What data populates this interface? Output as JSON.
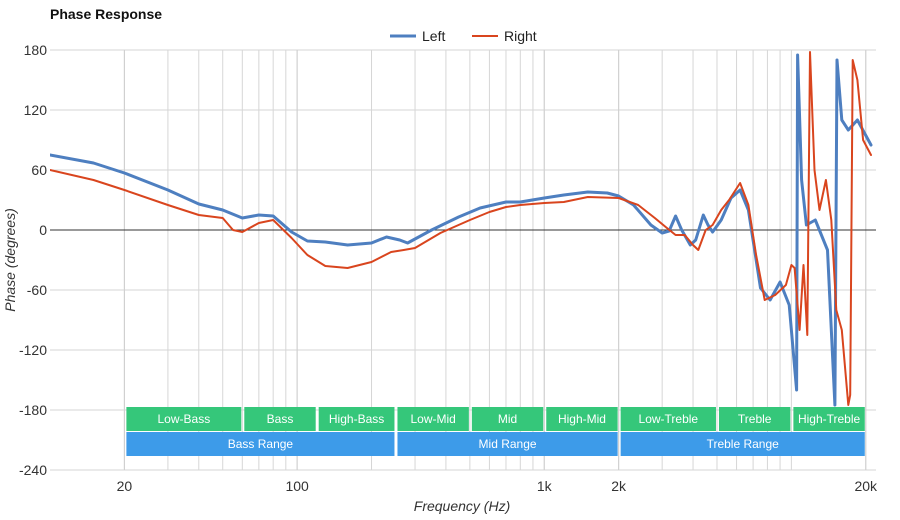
{
  "chart_data": {
    "type": "line",
    "title": "Phase Response",
    "xlabel": "Frequency (Hz)",
    "ylabel": "Phase (degrees)",
    "x_scale": "log",
    "xlim": [
      10,
      22000
    ],
    "ylim": [
      -240,
      180
    ],
    "x_ticks": [
      {
        "value": 20,
        "label": "20"
      },
      {
        "value": 100,
        "label": "100"
      },
      {
        "value": 1000,
        "label": "1k"
      },
      {
        "value": 2000,
        "label": "2k"
      },
      {
        "value": 20000,
        "label": "20k"
      }
    ],
    "y_ticks": [
      180,
      120,
      60,
      0,
      -60,
      -120,
      -180,
      -240
    ],
    "grid": true,
    "legend_position": "top",
    "series": [
      {
        "name": "Left",
        "color": "#4e7fc0",
        "points": [
          [
            10,
            75
          ],
          [
            15,
            67
          ],
          [
            20,
            57
          ],
          [
            30,
            40
          ],
          [
            40,
            26
          ],
          [
            50,
            20
          ],
          [
            60,
            12
          ],
          [
            70,
            15
          ],
          [
            80,
            14
          ],
          [
            95,
            -2
          ],
          [
            110,
            -11
          ],
          [
            130,
            -12
          ],
          [
            160,
            -15
          ],
          [
            200,
            -13
          ],
          [
            230,
            -7
          ],
          [
            260,
            -10
          ],
          [
            280,
            -13
          ],
          [
            350,
            0
          ],
          [
            450,
            13
          ],
          [
            550,
            22
          ],
          [
            700,
            28
          ],
          [
            800,
            28
          ],
          [
            1000,
            32
          ],
          [
            1200,
            35
          ],
          [
            1500,
            38
          ],
          [
            1800,
            37
          ],
          [
            2000,
            34
          ],
          [
            2300,
            25
          ],
          [
            2700,
            5
          ],
          [
            3000,
            -3
          ],
          [
            3200,
            -1
          ],
          [
            3400,
            14
          ],
          [
            3600,
            0
          ],
          [
            3900,
            -15
          ],
          [
            4100,
            -10
          ],
          [
            4400,
            15
          ],
          [
            4600,
            5
          ],
          [
            4800,
            -2
          ],
          [
            5200,
            10
          ],
          [
            5700,
            32
          ],
          [
            6200,
            40
          ],
          [
            6700,
            20
          ],
          [
            7100,
            -20
          ],
          [
            7500,
            -58
          ],
          [
            8200,
            -70
          ],
          [
            9000,
            -52
          ],
          [
            9800,
            -75
          ],
          [
            10500,
            -160
          ],
          [
            10600,
            175
          ],
          [
            11000,
            50
          ],
          [
            11500,
            5
          ],
          [
            12500,
            10
          ],
          [
            14000,
            -20
          ],
          [
            15000,
            -175
          ],
          [
            15300,
            170
          ],
          [
            16000,
            110
          ],
          [
            17000,
            100
          ],
          [
            18500,
            110
          ],
          [
            21000,
            85
          ]
        ]
      },
      {
        "name": "Right",
        "color": "#d9451e",
        "points": [
          [
            10,
            60
          ],
          [
            15,
            50
          ],
          [
            20,
            40
          ],
          [
            30,
            25
          ],
          [
            40,
            15
          ],
          [
            50,
            12
          ],
          [
            55,
            0
          ],
          [
            60,
            -2
          ],
          [
            70,
            7
          ],
          [
            80,
            10
          ],
          [
            95,
            -8
          ],
          [
            110,
            -25
          ],
          [
            130,
            -36
          ],
          [
            160,
            -38
          ],
          [
            200,
            -32
          ],
          [
            240,
            -22
          ],
          [
            270,
            -20
          ],
          [
            300,
            -18
          ],
          [
            380,
            -3
          ],
          [
            500,
            10
          ],
          [
            600,
            18
          ],
          [
            700,
            23
          ],
          [
            800,
            25
          ],
          [
            1000,
            27
          ],
          [
            1200,
            28
          ],
          [
            1500,
            33
          ],
          [
            2000,
            32
          ],
          [
            2400,
            25
          ],
          [
            2800,
            12
          ],
          [
            3100,
            3
          ],
          [
            3400,
            -5
          ],
          [
            3700,
            -5
          ],
          [
            4000,
            -15
          ],
          [
            4200,
            -20
          ],
          [
            4500,
            0
          ],
          [
            4800,
            5
          ],
          [
            5200,
            20
          ],
          [
            5600,
            30
          ],
          [
            6200,
            47
          ],
          [
            6700,
            25
          ],
          [
            7200,
            -25
          ],
          [
            7800,
            -70
          ],
          [
            8600,
            -65
          ],
          [
            9500,
            -55
          ],
          [
            10000,
            -35
          ],
          [
            10300,
            -38
          ],
          [
            10800,
            -100
          ],
          [
            11200,
            -35
          ],
          [
            11600,
            -105
          ],
          [
            11900,
            178
          ],
          [
            12400,
            60
          ],
          [
            13000,
            20
          ],
          [
            13800,
            50
          ],
          [
            14500,
            10
          ],
          [
            15200,
            -80
          ],
          [
            16000,
            -100
          ],
          [
            17000,
            -175
          ],
          [
            17300,
            -165
          ],
          [
            17700,
            170
          ],
          [
            18500,
            150
          ],
          [
            19500,
            90
          ],
          [
            21000,
            75
          ]
        ]
      }
    ],
    "bands": [
      {
        "label": "Low-Bass",
        "start": 20,
        "end": 60,
        "color": "#35c77a",
        "row": 1
      },
      {
        "label": "Bass",
        "start": 60,
        "end": 120,
        "color": "#35c77a",
        "row": 1
      },
      {
        "label": "High-Bass",
        "start": 120,
        "end": 250,
        "color": "#35c77a",
        "row": 1
      },
      {
        "label": "Low-Mid",
        "start": 250,
        "end": 500,
        "color": "#35c77a",
        "row": 1
      },
      {
        "label": "Mid",
        "start": 500,
        "end": 1000,
        "color": "#35c77a",
        "row": 1
      },
      {
        "label": "High-Mid",
        "start": 1000,
        "end": 2000,
        "color": "#35c77a",
        "row": 1
      },
      {
        "label": "Low-Treble",
        "start": 2000,
        "end": 5000,
        "color": "#35c77a",
        "row": 1
      },
      {
        "label": "Treble",
        "start": 5000,
        "end": 10000,
        "color": "#35c77a",
        "row": 1
      },
      {
        "label": "High-Treble",
        "start": 10000,
        "end": 20000,
        "color": "#35c77a",
        "row": 1
      },
      {
        "label": "Bass Range",
        "start": 20,
        "end": 250,
        "color": "#3d9be9",
        "row": 2
      },
      {
        "label": "Mid Range",
        "start": 250,
        "end": 2000,
        "color": "#3d9be9",
        "row": 2
      },
      {
        "label": "Treble Range",
        "start": 2000,
        "end": 20000,
        "color": "#3d9be9",
        "row": 2
      }
    ]
  }
}
